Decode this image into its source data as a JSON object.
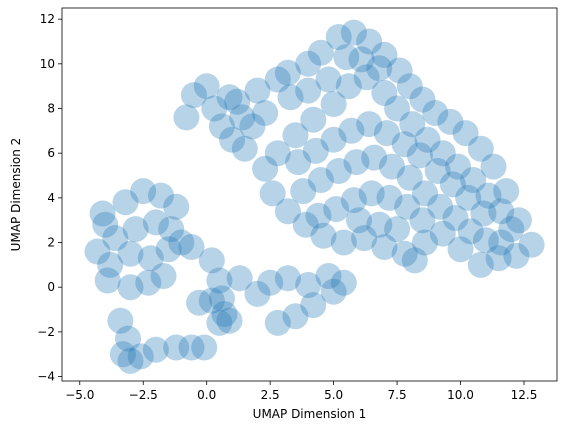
{
  "chart_data": {
    "type": "scatter",
    "title": "",
    "xlabel": "UMAP Dimension 1",
    "ylabel": "UMAP Dimension 2",
    "xlim": [
      -5.7,
      13.8
    ],
    "ylim": [
      -4.2,
      12.5
    ],
    "xticks": [
      -5.0,
      -2.5,
      0.0,
      2.5,
      5.0,
      7.5,
      10.0,
      12.5
    ],
    "xtick_labels": [
      "−5.0",
      "−2.5",
      "0.0",
      "2.5",
      "5.0",
      "7.5",
      "10.0",
      "12.5"
    ],
    "yticks": [
      -4,
      -2,
      0,
      2,
      4,
      6,
      8,
      10,
      12
    ],
    "ytick_labels": [
      "−4",
      "−2",
      "0",
      "2",
      "4",
      "6",
      "8",
      "10",
      "12"
    ],
    "grid": false,
    "legend": "none",
    "marker_color": "#1f77b4",
    "marker_alpha": 0.07,
    "series": [
      {
        "points": [
          [
            -3.2,
            3.8
          ],
          [
            -2.5,
            4.3
          ],
          [
            -1.8,
            4.1
          ],
          [
            -1.2,
            3.6
          ],
          [
            -4.0,
            2.8
          ],
          [
            -3.6,
            2.2
          ],
          [
            -2.8,
            2.6
          ],
          [
            -2.0,
            2.9
          ],
          [
            -1.4,
            2.6
          ],
          [
            -4.3,
            1.6
          ],
          [
            -3.8,
            1.0
          ],
          [
            -3.0,
            1.5
          ],
          [
            -2.2,
            1.3
          ],
          [
            -1.5,
            1.7
          ],
          [
            -1.0,
            2.0
          ],
          [
            -0.6,
            1.8
          ],
          [
            -3.9,
            0.3
          ],
          [
            -3.0,
            0.0
          ],
          [
            -2.3,
            0.2
          ],
          [
            -1.7,
            0.5
          ],
          [
            -4.1,
            3.3
          ],
          [
            -3.4,
            -1.5
          ],
          [
            -3.1,
            -2.3
          ],
          [
            -3.3,
            -3.0
          ],
          [
            -3.0,
            -3.3
          ],
          [
            -2.6,
            -3.1
          ],
          [
            -2.0,
            -2.8
          ],
          [
            -1.2,
            -2.7
          ],
          [
            -0.6,
            -2.7
          ],
          [
            -0.1,
            -2.7
          ],
          [
            0.2,
            1.2
          ],
          [
            0.5,
            0.3
          ],
          [
            0.6,
            -0.5
          ],
          [
            0.7,
            -1.2
          ],
          [
            0.5,
            -1.6
          ],
          [
            0.9,
            -1.5
          ],
          [
            0.2,
            -0.6
          ],
          [
            -0.3,
            -0.7
          ],
          [
            1.3,
            0.4
          ],
          [
            2.0,
            -0.3
          ],
          [
            2.8,
            -1.6
          ],
          [
            3.5,
            -1.3
          ],
          [
            4.2,
            -0.8
          ],
          [
            5.0,
            -0.2
          ],
          [
            2.5,
            0.2
          ],
          [
            3.2,
            0.4
          ],
          [
            4.0,
            0.1
          ],
          [
            4.8,
            0.5
          ],
          [
            5.4,
            0.2
          ],
          [
            0.0,
            9.0
          ],
          [
            -0.5,
            8.6
          ],
          [
            -0.8,
            7.6
          ],
          [
            0.3,
            8.0
          ],
          [
            0.6,
            7.2
          ],
          [
            1.0,
            6.6
          ],
          [
            1.5,
            6.2
          ],
          [
            1.2,
            8.3
          ],
          [
            2.0,
            8.8
          ],
          [
            2.3,
            7.8
          ],
          [
            2.8,
            9.3
          ],
          [
            3.2,
            9.6
          ],
          [
            4.0,
            10.0
          ],
          [
            4.5,
            10.5
          ],
          [
            5.2,
            11.2
          ],
          [
            5.8,
            11.4
          ],
          [
            6.4,
            11.0
          ],
          [
            7.0,
            10.4
          ],
          [
            7.6,
            9.7
          ],
          [
            8.0,
            9.0
          ],
          [
            8.5,
            8.4
          ],
          [
            9.0,
            7.8
          ],
          [
            9.6,
            7.4
          ],
          [
            10.2,
            6.9
          ],
          [
            10.8,
            6.2
          ],
          [
            11.3,
            5.4
          ],
          [
            11.8,
            4.3
          ],
          [
            12.3,
            3.0
          ],
          [
            12.8,
            1.9
          ],
          [
            12.2,
            1.4
          ],
          [
            11.5,
            1.3
          ],
          [
            10.8,
            1.0
          ],
          [
            10.0,
            1.7
          ],
          [
            9.3,
            2.4
          ],
          [
            8.6,
            2.0
          ],
          [
            8.2,
            1.2
          ],
          [
            7.8,
            1.5
          ],
          [
            7.0,
            1.8
          ],
          [
            6.2,
            2.2
          ],
          [
            5.4,
            2.0
          ],
          [
            4.6,
            2.3
          ],
          [
            3.9,
            2.8
          ],
          [
            3.2,
            3.4
          ],
          [
            2.6,
            4.2
          ],
          [
            2.3,
            5.3
          ],
          [
            2.8,
            6.0
          ],
          [
            3.5,
            6.8
          ],
          [
            4.2,
            7.5
          ],
          [
            5.0,
            8.2
          ],
          [
            5.6,
            9.0
          ],
          [
            6.3,
            9.4
          ],
          [
            7.0,
            8.7
          ],
          [
            7.5,
            8.0
          ],
          [
            8.1,
            7.3
          ],
          [
            8.7,
            6.6
          ],
          [
            9.3,
            6.0
          ],
          [
            9.9,
            5.4
          ],
          [
            10.5,
            4.8
          ],
          [
            11.1,
            4.1
          ],
          [
            11.6,
            3.4
          ],
          [
            12.0,
            2.6
          ],
          [
            3.3,
            8.5
          ],
          [
            4.0,
            8.8
          ],
          [
            4.8,
            9.3
          ],
          [
            5.5,
            10.3
          ],
          [
            6.1,
            10.2
          ],
          [
            6.8,
            9.8
          ],
          [
            3.6,
            5.6
          ],
          [
            4.3,
            6.1
          ],
          [
            5.0,
            6.6
          ],
          [
            5.7,
            7.0
          ],
          [
            6.4,
            7.3
          ],
          [
            7.1,
            6.9
          ],
          [
            7.8,
            6.4
          ],
          [
            8.4,
            5.9
          ],
          [
            9.1,
            5.2
          ],
          [
            9.7,
            4.6
          ],
          [
            10.3,
            4.0
          ],
          [
            10.9,
            3.3
          ],
          [
            3.8,
            4.3
          ],
          [
            4.5,
            4.8
          ],
          [
            5.2,
            5.2
          ],
          [
            5.9,
            5.6
          ],
          [
            6.6,
            5.8
          ],
          [
            7.3,
            5.4
          ],
          [
            8.0,
            4.9
          ],
          [
            8.6,
            4.2
          ],
          [
            9.2,
            3.6
          ],
          [
            9.8,
            3.1
          ],
          [
            10.4,
            2.5
          ],
          [
            11.0,
            2.1
          ],
          [
            11.6,
            2.0
          ],
          [
            4.4,
            3.2
          ],
          [
            5.1,
            3.5
          ],
          [
            5.8,
            3.9
          ],
          [
            6.5,
            4.2
          ],
          [
            7.2,
            4.0
          ],
          [
            7.9,
            3.6
          ],
          [
            8.5,
            3.0
          ],
          [
            6.0,
            3.0
          ],
          [
            6.8,
            2.8
          ],
          [
            7.5,
            2.6
          ],
          [
            1.8,
            7.2
          ],
          [
            1.4,
            7.6
          ],
          [
            0.9,
            8.5
          ]
        ]
      }
    ]
  }
}
